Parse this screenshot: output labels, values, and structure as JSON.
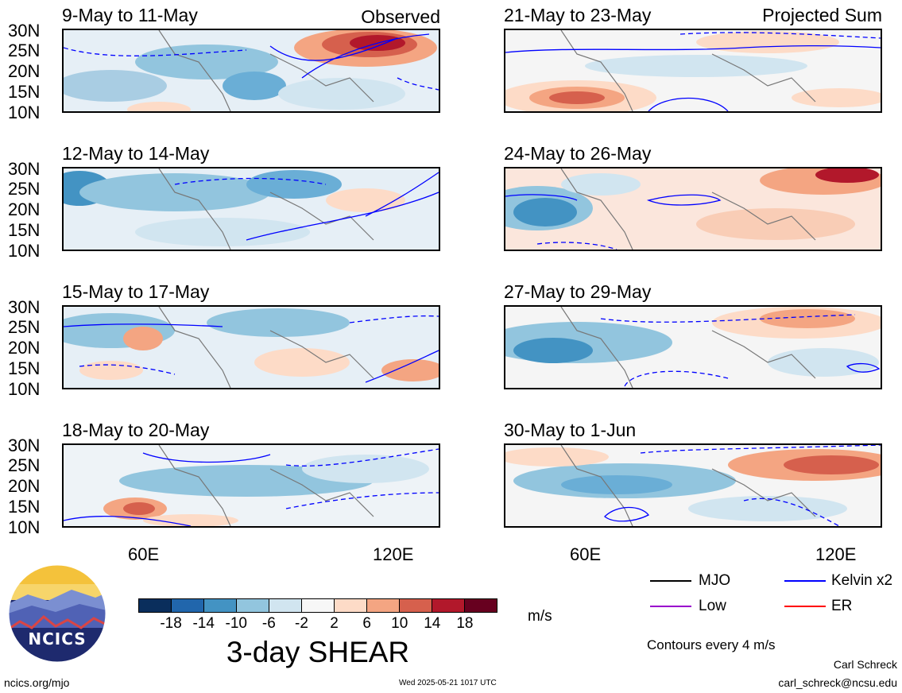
{
  "panels": [
    {
      "title": "9-May to 11-May",
      "tag": "Observed"
    },
    {
      "title": "12-May to 14-May",
      "tag": ""
    },
    {
      "title": "15-May to 17-May",
      "tag": ""
    },
    {
      "title": "18-May to 20-May",
      "tag": ""
    },
    {
      "title": "21-May to 23-May",
      "tag": "Projected Sum"
    },
    {
      "title": "24-May to 26-May",
      "tag": ""
    },
    {
      "title": "27-May to 29-May",
      "tag": ""
    },
    {
      "title": "30-May to 1-Jun",
      "tag": ""
    }
  ],
  "lat_labels": [
    "30N",
    "25N",
    "20N",
    "15N",
    "10N"
  ],
  "lon_labels": [
    "60E",
    "120E"
  ],
  "colorbar": {
    "colors": [
      "#0a2e5c",
      "#2166ac",
      "#4393c3",
      "#92c5de",
      "#d1e5f0",
      "#f7f7f7",
      "#fddbc7",
      "#f4a582",
      "#d6604d",
      "#b2182b",
      "#67001f"
    ],
    "labels": [
      "-18",
      "-14",
      "-10",
      "-6",
      "-2",
      "2",
      "6",
      "10",
      "14",
      "18"
    ],
    "unit": "m/s",
    "title": "3-day SHEAR"
  },
  "legend": [
    {
      "label": "MJO",
      "color": "#000000"
    },
    {
      "label": "Kelvin x2",
      "color": "#0000ff"
    },
    {
      "label": "Low",
      "color": "#9900cc"
    },
    {
      "label": "ER",
      "color": "#ff0000"
    }
  ],
  "contour_note": "Contours every 4 m/s",
  "footer": {
    "site": "ncics.org/mjo",
    "timestamp": "Wed 2025-05-21 1017 UTC",
    "author": "Carl Schreck",
    "email": "carl_schreck@ncsu.edu"
  },
  "logo": {
    "text": "NCICS"
  }
}
